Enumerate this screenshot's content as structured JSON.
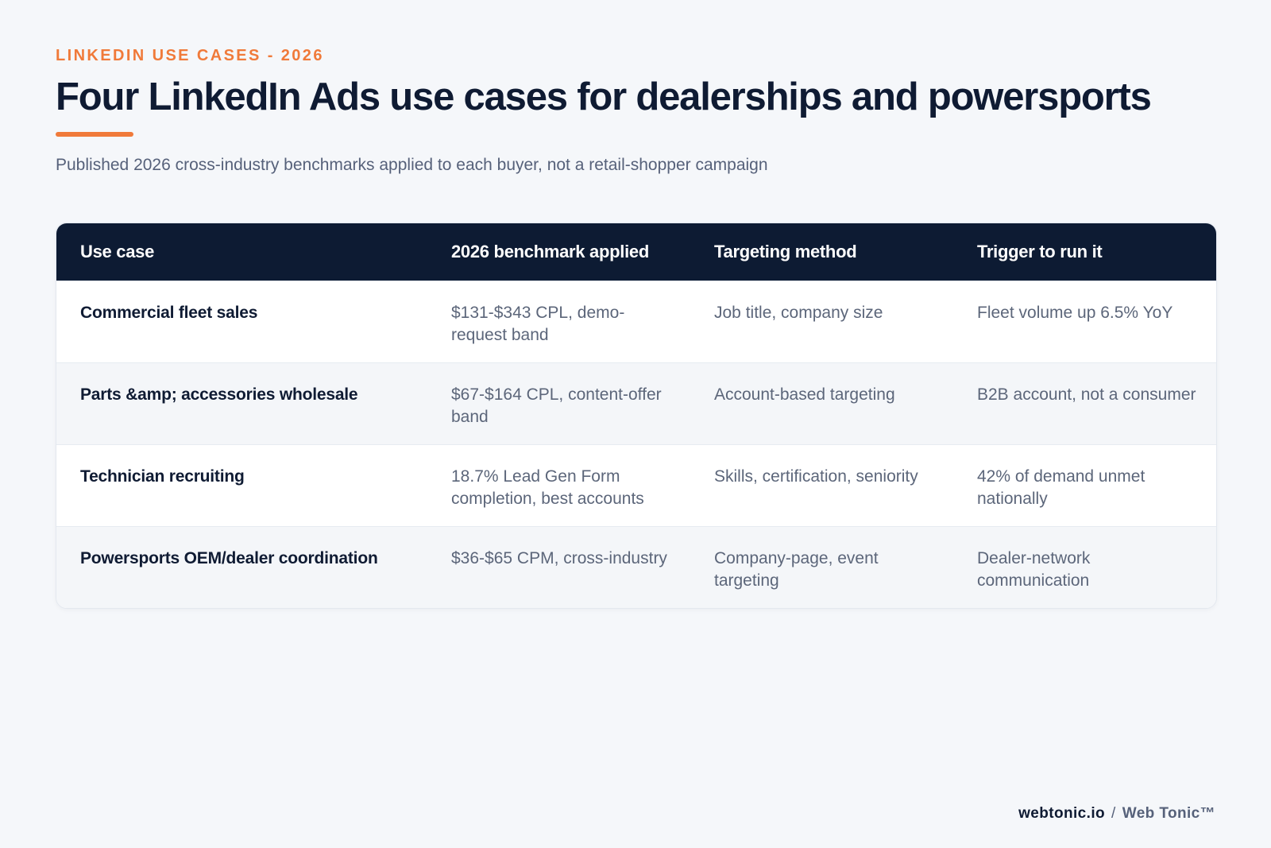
{
  "header": {
    "eyebrow": "LINKEDIN USE CASES - 2026",
    "title": "Four LinkedIn Ads use cases for dealerships and powersports",
    "subtitle": "Published 2026 cross-industry benchmarks applied to each buyer, not a retail-shopper campaign"
  },
  "table": {
    "columns": [
      "Use case",
      "2026 benchmark applied",
      "Targeting method",
      "Trigger to run it"
    ],
    "rows": [
      [
        "Commercial fleet sales",
        "$131-$343 CPL, demo-request band",
        "Job title, company size",
        "Fleet volume up 6.5% YoY"
      ],
      [
        "Parts &amp; accessories wholesale",
        "$67-$164 CPL, content-offer band",
        "Account-based targeting",
        "B2B account, not a consumer"
      ],
      [
        "Technician recruiting",
        "18.7% Lead Gen Form completion, best accounts",
        "Skills, certification, seniority",
        "42% of demand unmet nationally"
      ],
      [
        "Powersports OEM/dealer coordination",
        "$36-$65 CPM, cross-industry",
        "Company-page, event targeting",
        "Dealer-network communication"
      ]
    ]
  },
  "footer": {
    "site": "webtonic.io",
    "separator": "/",
    "brand": "Web Tonic™"
  },
  "colors": {
    "accent": "#f07a3a",
    "navy": "#0d1b33",
    "background": "#f5f7fa"
  }
}
